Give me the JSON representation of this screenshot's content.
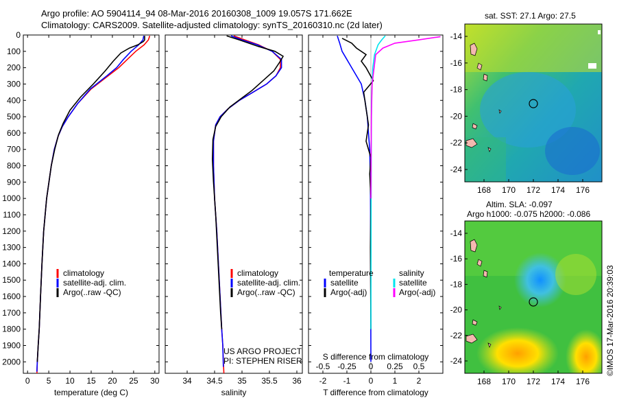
{
  "header": {
    "line1": "Argo profile: AO 5904114_94 08-Mar-2016 20160308_1009 19.057S 171.662E",
    "line2": "Climatology: CARS2009. Satellite-adjusted climatology: synTS_20160310.nc (2d later)"
  },
  "footer": {
    "project": "US ARGO PROJECT",
    "pi": "PI: STEPHEN RISER",
    "copyright": "©IMOS 17-Mar-2016 20:39:03"
  },
  "legends": {
    "clim": "climatology",
    "sat": "satellite-adj. clim.",
    "argo": "Argo(..raw -QC)",
    "diff_temp_title": "temperature",
    "diff_sal_title": "salinity",
    "diff_sat": "satellite",
    "diff_argo": "Argo(-adj)"
  },
  "colors": {
    "climatology": "#ff0000",
    "satellite": "#0000ff",
    "argo": "#000000",
    "sal_satellite": "#00e5ee",
    "sal_argo": "#ff00ff",
    "land": "#f4b9b0"
  },
  "chart_data": [
    {
      "id": "temperature",
      "type": "line",
      "xlabel": "temperature (deg C)",
      "xlim": [
        -1,
        31
      ],
      "xticks": [
        0,
        5,
        10,
        15,
        20,
        25,
        30
      ],
      "ylim": [
        2070,
        0
      ],
      "yticks": [
        0,
        100,
        200,
        300,
        400,
        500,
        600,
        700,
        800,
        900,
        1000,
        1100,
        1200,
        1300,
        1400,
        1500,
        1600,
        1700,
        1800,
        1900,
        2000
      ],
      "series": [
        {
          "name": "climatology",
          "color": "#ff0000",
          "x": [
            28.8,
            28.5,
            27.5,
            25.5,
            23.5,
            21.5,
            19,
            15,
            11.8,
            9.6,
            8.2,
            7.2,
            6.3,
            5.6,
            4.5,
            3.8,
            3.4,
            3.05,
            2.75,
            2.5,
            2.3,
            2.2
          ],
          "y": [
            5,
            30,
            60,
            100,
            150,
            200,
            250,
            330,
            420,
            500,
            560,
            620,
            700,
            800,
            1000,
            1200,
            1400,
            1600,
            1800,
            1900,
            2000,
            2080
          ]
        },
        {
          "name": "satellite-adj. clim.",
          "color": "#0000ff",
          "x": [
            27.4,
            27.2,
            26.2,
            24.4,
            22.6,
            21,
            18.7,
            14.8,
            11.8,
            9.6,
            8.2,
            7.2,
            6.3,
            5.6,
            4.5,
            3.8,
            3.4,
            3.05,
            2.75,
            2.5,
            2.3,
            2.2
          ],
          "y": [
            5,
            30,
            60,
            100,
            150,
            200,
            250,
            330,
            420,
            500,
            560,
            620,
            700,
            800,
            1000,
            1200,
            1400,
            1600,
            1800,
            1900,
            2000,
            2060
          ]
        },
        {
          "name": "Argo(..raw -QC)",
          "color": "#000000",
          "x": [
            27.6,
            27.6,
            27.3,
            26,
            24,
            22,
            20.2,
            18.3,
            15.5,
            12.5,
            10,
            8.4,
            7.3,
            6.4,
            5.6,
            4.5,
            3.8,
            3.4,
            3.05,
            2.75,
            2.5,
            2.3
          ],
          "y": [
            5,
            30,
            40,
            60,
            80,
            110,
            160,
            220,
            300,
            380,
            460,
            540,
            610,
            700,
            800,
            1000,
            1200,
            1400,
            1600,
            1800,
            1900,
            2000
          ]
        }
      ]
    },
    {
      "id": "salinity",
      "type": "line",
      "xlabel": "salinity",
      "xlim": [
        33.6,
        36.1
      ],
      "xticks": [
        34,
        34.5,
        35,
        35.5,
        36
      ],
      "ylim": [
        2070,
        0
      ],
      "series": [
        {
          "name": "climatology",
          "color": "#ff0000",
          "x": [
            34.85,
            35.05,
            35.3,
            35.55,
            35.7,
            35.7,
            35.62,
            35.45,
            35.2,
            34.95,
            34.75,
            34.6,
            34.52,
            34.48,
            34.48,
            34.5,
            34.54,
            34.57,
            34.6,
            34.63,
            34.65,
            34.66,
            34.67
          ],
          "y": [
            5,
            30,
            60,
            100,
            150,
            200,
            250,
            300,
            350,
            400,
            450,
            500,
            550,
            650,
            800,
            1000,
            1200,
            1400,
            1600,
            1800,
            1900,
            2000,
            2070
          ]
        },
        {
          "name": "satellite-adj. clim.",
          "color": "#0000ff",
          "x": [
            34.8,
            35.0,
            35.28,
            35.55,
            35.72,
            35.72,
            35.62,
            35.45,
            35.2,
            34.95,
            34.75,
            34.6,
            34.52,
            34.48,
            34.48,
            34.5,
            34.54,
            34.57,
            34.6,
            34.63,
            34.65,
            34.66
          ],
          "y": [
            5,
            30,
            60,
            100,
            150,
            200,
            250,
            300,
            350,
            400,
            450,
            500,
            550,
            650,
            800,
            1000,
            1200,
            1400,
            1600,
            1800,
            1900,
            2030
          ]
        },
        {
          "name": "Argo(..raw -QC)",
          "color": "#000000",
          "x": [
            34.72,
            34.95,
            35.3,
            35.6,
            35.75,
            35.68,
            35.58,
            35.38,
            35.18,
            34.98,
            34.78,
            34.62,
            34.52,
            34.47,
            34.46,
            34.48,
            34.52,
            34.55,
            34.58,
            34.61,
            34.63
          ],
          "y": [
            5,
            30,
            70,
            100,
            130,
            170,
            220,
            280,
            340,
            390,
            440,
            500,
            560,
            640,
            760,
            900,
            1100,
            1300,
            1500,
            1700,
            1800
          ]
        }
      ]
    },
    {
      "id": "difference",
      "type": "line",
      "xlabel": "T difference from climatology",
      "x2label": "S difference from climatology",
      "xlim": [
        -2.6,
        3.0
      ],
      "xticks": [
        -2,
        -1,
        0,
        1,
        2
      ],
      "x2ticks": [
        -0.5,
        -0.25,
        0,
        0.25,
        0.5
      ],
      "x2ticklabels": [
        "-0.5",
        "-0.25",
        "0",
        "0.25",
        "0.5"
      ],
      "ylim": [
        2070,
        0
      ],
      "series": [
        {
          "name": "T satellite",
          "color": "#0000ff",
          "x": [
            -1.4,
            -1.3,
            -1.2,
            -1.0,
            -0.8,
            -0.6,
            -0.4,
            -0.25,
            -0.15,
            -0.1,
            -0.05,
            -0.02,
            -0.01,
            0
          ],
          "y": [
            5,
            50,
            100,
            150,
            200,
            250,
            300,
            400,
            500,
            600,
            700,
            900,
            1200,
            2000
          ]
        },
        {
          "name": "T Argo(-adj)",
          "color": "#000000",
          "x": [
            -1.2,
            -0.8,
            -0.6,
            -0.2,
            -0.4,
            -0.2,
            0.1,
            -0.3,
            -0.2,
            -0.1,
            -0.2,
            0.0,
            -0.05,
            0.0,
            -0.02,
            0.0
          ],
          "y": [
            20,
            50,
            80,
            120,
            160,
            200,
            280,
            350,
            450,
            550,
            650,
            750,
            850,
            1000,
            1300,
            1800
          ]
        },
        {
          "name": "S satellite",
          "color": "#00e5ee",
          "x": [
            0.6,
            0.45,
            0.3,
            0.15,
            0.08,
            0.05,
            0.03,
            0.02,
            0.01,
            0.0
          ],
          "y": [
            5,
            30,
            60,
            120,
            200,
            300,
            400,
            600,
            900,
            1800
          ]
        },
        {
          "name": "S Argo(-adj)",
          "color": "#ff00ff",
          "x": [
            2.9,
            2.0,
            1.0,
            0.5,
            0.2,
            0.05,
            0.02,
            0.0
          ],
          "y": [
            10,
            30,
            50,
            80,
            120,
            300,
            500,
            1000
          ]
        }
      ]
    }
  ],
  "maps": {
    "sst": {
      "title": "sat. SST: 27.1  Argo: 27.5",
      "yticks": [
        "-14",
        "-16",
        "-18",
        "-20",
        "-22",
        "-24"
      ],
      "xticks": [
        "168",
        "170",
        "172",
        "174",
        "176"
      ]
    },
    "sla": {
      "title1": "Altim. SLA: -0.097",
      "title2": "Argo h1000: -0.075 h2000: -0.086",
      "yticks": [
        "-14",
        "-16",
        "-18",
        "-20",
        "-22",
        "-24"
      ],
      "xticks": [
        "168",
        "170",
        "172",
        "174",
        "176"
      ]
    }
  }
}
